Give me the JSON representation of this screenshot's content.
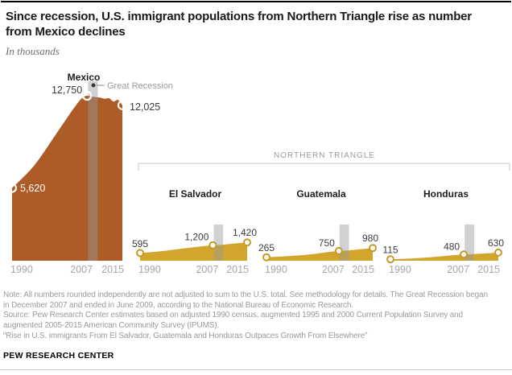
{
  "header": {
    "title": "Since recession, U.S. immigrant populations from Northern Triangle rise as number from Mexico declines",
    "title_lines": [
      "Since recession, U.S. immigrant populations from Northern Triangle rise as number",
      "from Mexico declines"
    ],
    "subtitle": "In thousands"
  },
  "chart_data": {
    "type": "area",
    "title": "Since recession, U.S. immigrant populations from Northern Triangle rise as number from Mexico declines",
    "unit_note": "In thousands",
    "x_range": [
      1990,
      2015
    ],
    "x_ticks": [
      "1990",
      "2007",
      "2015"
    ],
    "group_label": "NORTHERN TRIANGLE",
    "group_members": [
      "El Salvador",
      "Guatemala",
      "Honduras"
    ],
    "recession": {
      "label": "Great Recession",
      "from_year": 2007.2,
      "to_year": 2009.4,
      "band_color": "#97989c"
    },
    "series": [
      {
        "name": "Mexico",
        "color": "#ad5b27",
        "labeled_points": [
          {
            "year": 1990,
            "value": 5620,
            "label": "5,620"
          },
          {
            "year": 2007,
            "value": 12750,
            "label": "12,750"
          },
          {
            "year": 2015,
            "value": 12025,
            "label": "12,025"
          }
        ],
        "curve": [
          [
            1990,
            5620
          ],
          [
            1995,
            7350
          ],
          [
            2000,
            9800
          ],
          [
            2003,
            11300
          ],
          [
            2005,
            12250
          ],
          [
            2006,
            12600
          ],
          [
            2007,
            12750
          ],
          [
            2008,
            12690
          ],
          [
            2009,
            12640
          ],
          [
            2010,
            12600
          ],
          [
            2011,
            12520
          ],
          [
            2012,
            12560
          ],
          [
            2013,
            12300
          ],
          [
            2014,
            12430
          ],
          [
            2015,
            12025
          ]
        ]
      },
      {
        "name": "El Salvador",
        "color": "#d2a52c",
        "ring_color": "#c79a26",
        "labeled_points": [
          {
            "year": 1990,
            "value": 595,
            "label": "595"
          },
          {
            "year": 2007,
            "value": 1200,
            "label": "1,200"
          },
          {
            "year": 2015,
            "value": 1420,
            "label": "1,420"
          }
        ],
        "curve": [
          [
            1990,
            595
          ],
          [
            1995,
            740
          ],
          [
            2000,
            950
          ],
          [
            2005,
            1140
          ],
          [
            2007,
            1200
          ],
          [
            2009,
            1230
          ],
          [
            2011,
            1300
          ],
          [
            2013,
            1360
          ],
          [
            2015,
            1420
          ]
        ]
      },
      {
        "name": "Guatemala",
        "color": "#d2a52c",
        "ring_color": "#c79a26",
        "labeled_points": [
          {
            "year": 1990,
            "value": 265,
            "label": "265"
          },
          {
            "year": 2007,
            "value": 750,
            "label": "750"
          },
          {
            "year": 2015,
            "value": 980,
            "label": "980"
          }
        ],
        "curve": [
          [
            1990,
            265
          ],
          [
            1995,
            355
          ],
          [
            2000,
            480
          ],
          [
            2005,
            690
          ],
          [
            2007,
            750
          ],
          [
            2009,
            790
          ],
          [
            2011,
            850
          ],
          [
            2013,
            915
          ],
          [
            2015,
            980
          ]
        ]
      },
      {
        "name": "Honduras",
        "color": "#d2a52c",
        "ring_color": "#c79a26",
        "labeled_points": [
          {
            "year": 1990,
            "value": 115,
            "label": "115"
          },
          {
            "year": 2007,
            "value": 480,
            "label": "480"
          },
          {
            "year": 2015,
            "value": 630,
            "label": "630"
          }
        ],
        "curve": [
          [
            1990,
            115
          ],
          [
            1995,
            180
          ],
          [
            2000,
            285
          ],
          [
            2005,
            440
          ],
          [
            2007,
            480
          ],
          [
            2009,
            510
          ],
          [
            2011,
            545
          ],
          [
            2013,
            585
          ],
          [
            2015,
            630
          ]
        ]
      }
    ]
  },
  "footer": {
    "note_lines": [
      "Note: All numbers rounded independently are not adjusted to sum to the U.S. total. See methodology for details. The Great Recession began",
      "in December 2007 and ended in June 2009, according to the National Bureau of Economic Research.",
      "Source: Pew Research Center estimates based on adjusted 1990 census, augmented 1995 and 2000 Current Population Survey and",
      "augmented 2005-2015 American Community Survey (IPUMS).",
      "“Rise in U.S. immigrants From El Salvador, Guatemala and Honduras Outpaces Growth From Elsewhere”"
    ],
    "brand": "PEW RESEARCH CENTER"
  }
}
